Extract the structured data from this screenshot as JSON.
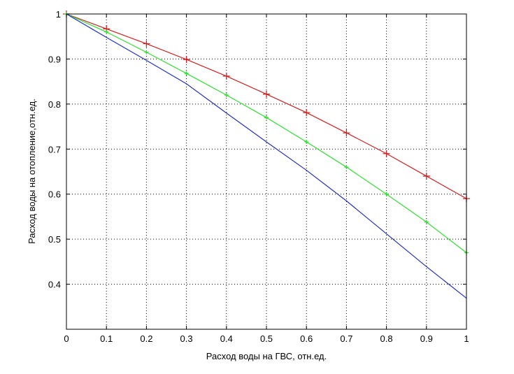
{
  "chart_data": {
    "type": "line",
    "title": "",
    "xlabel": "Расход воды на ГВС, отн.ед.",
    "ylabel": "Расход воды на отопление,отн.ед.",
    "xlim": [
      0,
      1
    ],
    "ylim": [
      0.3,
      1
    ],
    "grid": true,
    "xticks": [
      "0",
      "0.1",
      "0.2",
      "0.3",
      "0.4",
      "0.5",
      "0.6",
      "0.7",
      "0.8",
      "0.9",
      "1"
    ],
    "yticks": [
      "0.4",
      "0.5",
      "0.6",
      "0.7",
      "0.8",
      "0.9",
      "1"
    ],
    "x": [
      0,
      0.1,
      0.2,
      0.3,
      0.4,
      0.5,
      0.6,
      0.7,
      0.8,
      0.9,
      1.0
    ],
    "series": [
      {
        "color": "#cc2222",
        "marker": "plus",
        "values": [
          1.0,
          0.967,
          0.934,
          0.899,
          0.862,
          0.822,
          0.781,
          0.736,
          0.69,
          0.64,
          0.59
        ]
      },
      {
        "color": "#33dd33",
        "marker": "plus-small",
        "values": [
          1.0,
          0.96,
          0.915,
          0.868,
          0.82,
          0.77,
          0.716,
          0.66,
          0.6,
          0.538,
          0.47
        ]
      },
      {
        "color": "#2233bb",
        "marker": "none",
        "values": [
          1.0,
          0.948,
          0.897,
          0.845,
          0.78,
          0.716,
          0.653,
          0.585,
          0.512,
          0.439,
          0.369
        ]
      }
    ]
  }
}
